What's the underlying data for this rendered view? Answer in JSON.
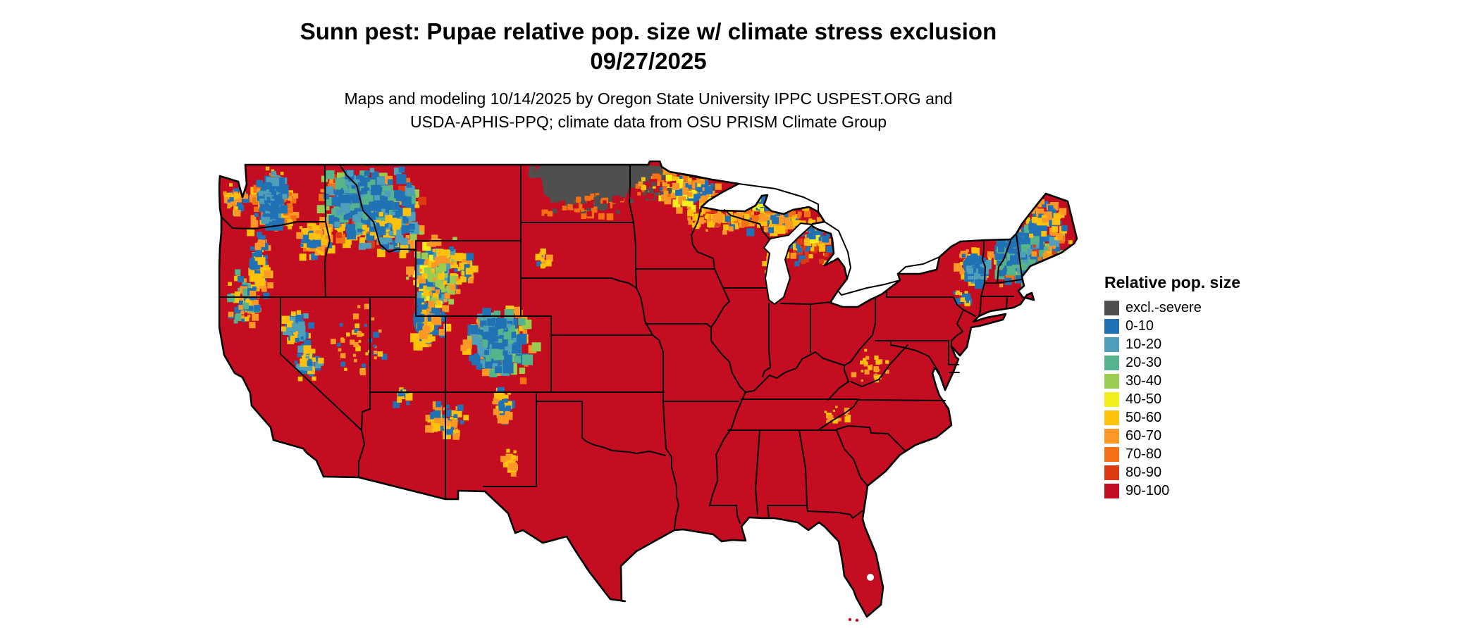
{
  "title": {
    "line1": "Sunn pest: Pupae relative pop. size w/ climate stress exclusion",
    "line2": "09/27/2025"
  },
  "subtitle": {
    "line1": "Maps and modeling 10/14/2025 by Oregon State University IPPC USPEST.ORG and",
    "line2": "USDA-APHIS-PPQ; climate data from OSU PRISM Climate Group"
  },
  "legend": {
    "title": "Relative pop. size",
    "items": [
      {
        "label": "excl.-severe",
        "color": "#4f4f4f"
      },
      {
        "label": "0-10",
        "color": "#2171b5"
      },
      {
        "label": "10-20",
        "color": "#4f9fba"
      },
      {
        "label": "20-30",
        "color": "#56b48c"
      },
      {
        "label": "30-40",
        "color": "#9ccb52"
      },
      {
        "label": "40-50",
        "color": "#f2ef1d"
      },
      {
        "label": "50-60",
        "color": "#fec20c"
      },
      {
        "label": "60-70",
        "color": "#fd9827"
      },
      {
        "label": "70-80",
        "color": "#f47012"
      },
      {
        "label": "80-90",
        "color": "#dc3a12"
      },
      {
        "label": "90-100",
        "color": "#c40d20"
      }
    ]
  },
  "chart_data": {
    "type": "heatmap",
    "title": "Sunn pest: Pupae relative pop. size w/ climate stress exclusion",
    "map_date": "09/27/2025",
    "model_date": "10/14/2025",
    "legend_title": "Relative pop. size",
    "classes": [
      "excl.-severe",
      "0-10",
      "10-20",
      "20-30",
      "30-40",
      "40-50",
      "50-60",
      "60-70",
      "70-80",
      "80-90",
      "90-100"
    ],
    "colors": [
      "#4f4f4f",
      "#2171b5",
      "#4f9fba",
      "#56b48c",
      "#9ccb52",
      "#f2ef1d",
      "#fec20c",
      "#fd9827",
      "#f47012",
      "#dc3a12",
      "#c40d20"
    ],
    "region": "Continental United States with state boundaries",
    "dominant_class": "90-100",
    "excluded_severe_regions": [
      "North Dakota",
      "northwestern Minnesota"
    ],
    "low_value_regions": [
      "Washington Cascades",
      "northern Idaho / western Montana Rockies",
      "Yellowstone / western Wyoming",
      "Sierra Nevada",
      "Utah Wasatch-Uinta",
      "Colorado Rockies",
      "northern Minnesota / Lake Superior shore",
      "Upper Peninsula Michigan",
      "Adirondacks",
      "northern New England / Maine"
    ]
  }
}
